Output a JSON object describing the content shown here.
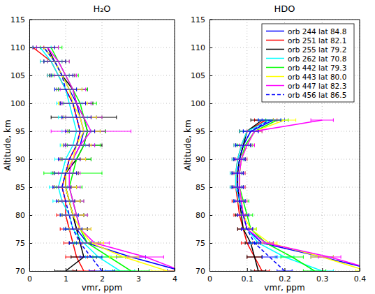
{
  "chart_data": [
    {
      "type": "line",
      "title": "H₂O",
      "x_label": "vmr, ppm",
      "y_label": "Altitude, km",
      "xlim": [
        0,
        4
      ],
      "xticks": [
        0,
        1,
        2,
        3,
        4
      ],
      "ylim": [
        70,
        115
      ],
      "yticks": [
        70,
        75,
        80,
        85,
        90,
        95,
        100,
        105,
        110,
        115
      ],
      "grid": true,
      "marker": "none",
      "y": [
        70,
        72.5,
        75,
        77.5,
        80,
        82.5,
        85,
        87.5,
        90,
        92.5,
        95,
        97.5,
        100,
        102.5,
        105,
        107.5,
        110
      ],
      "series": [
        {
          "color": "#0000ff",
          "line_style": "solid",
          "x": [
            4.2,
            2.8,
            1.6,
            1.3,
            1.2,
            1.1,
            1.0,
            1.0,
            1.2,
            1.4,
            1.5,
            1.4,
            1.3,
            1.1,
            0.9,
            0.7,
            0.4
          ],
          "x_errors": [
            0.4,
            0.4,
            0.3,
            0.3,
            0.3,
            0.3,
            0.3,
            0.3,
            0.35,
            0.4,
            0.45,
            0.45,
            0.4,
            0.35,
            0.3,
            0.3,
            0.3
          ]
        },
        {
          "color": "#ff0000",
          "line_style": "solid",
          "x": [
            1.5,
            1.3,
            1.2,
            1.1,
            1.0,
            1.0,
            0.9,
            1.0,
            1.1,
            1.3,
            1.4,
            1.3,
            1.2,
            1.0,
            0.8,
            0.6,
            0.1
          ],
          "x_errors": [
            0.3,
            0.3,
            0.25,
            0.25,
            0.25,
            0.25,
            0.25,
            0.3,
            0.3,
            0.35,
            0.4,
            0.4,
            0.35,
            0.3,
            0.3,
            0.3,
            0.3
          ]
        },
        {
          "color": "#000000",
          "line_style": "solid",
          "x": [
            1.0,
            1.5,
            1.4,
            1.3,
            1.2,
            1.1,
            1.0,
            1.0,
            1.3,
            1.5,
            1.6,
            1.5,
            1.3,
            1.2,
            0.9,
            0.7,
            0.5
          ],
          "x_errors": [
            0.3,
            0.35,
            0.3,
            0.3,
            0.3,
            0.3,
            0.3,
            0.35,
            0.4,
            0.5,
            0.5,
            0.9,
            0.45,
            0.4,
            0.35,
            0.3,
            0.3
          ]
        },
        {
          "color": "#00ffff",
          "line_style": "solid",
          "x": [
            2.5,
            1.9,
            1.5,
            1.2,
            1.1,
            0.9,
            0.8,
            0.9,
            1.0,
            1.2,
            1.3,
            1.2,
            1.1,
            1.0,
            0.8,
            0.6,
            0.3
          ],
          "x_errors": [
            0.4,
            0.35,
            0.3,
            0.25,
            0.25,
            0.25,
            0.25,
            0.3,
            0.3,
            0.35,
            0.4,
            0.4,
            0.35,
            0.3,
            0.3,
            0.3,
            0.3
          ]
        },
        {
          "color": "#00ff00",
          "line_style": "solid",
          "x": [
            2.8,
            2.2,
            1.6,
            1.4,
            1.3,
            1.2,
            1.1,
            1.2,
            1.3,
            1.5,
            1.6,
            1.5,
            1.4,
            1.2,
            1.0,
            0.8,
            0.6
          ],
          "x_errors": [
            0.5,
            0.45,
            0.35,
            0.3,
            0.3,
            0.3,
            0.35,
            0.8,
            0.4,
            0.45,
            0.5,
            0.5,
            0.45,
            0.4,
            0.35,
            0.3,
            0.3
          ]
        },
        {
          "color": "#ff00ff",
          "line_style": "solid",
          "x": [
            4.2,
            3.2,
            1.8,
            1.4,
            1.3,
            1.2,
            1.1,
            1.1,
            1.2,
            1.4,
            1.7,
            1.5,
            1.3,
            1.2,
            1.0,
            0.8,
            0.5
          ],
          "x_errors": [
            0.5,
            0.5,
            0.4,
            0.3,
            0.3,
            0.3,
            0.3,
            0.3,
            0.35,
            0.4,
            1.1,
            0.5,
            0.4,
            0.35,
            0.3,
            0.3,
            0.3
          ]
        },
        {
          "color": "#ffff00",
          "line_style": "solid",
          "x": [
            3.8,
            2.6,
            1.7,
            1.4,
            1.2,
            1.1,
            1.0,
            1.0,
            1.2,
            1.3,
            1.5,
            1.4,
            1.2,
            1.1,
            0.9,
            0.7,
            0.4
          ],
          "x_errors": [
            0.45,
            0.4,
            0.35,
            0.3,
            0.3,
            0.3,
            0.3,
            0.3,
            0.35,
            0.4,
            0.45,
            0.45,
            0.4,
            0.35,
            0.3,
            0.3,
            0.3
          ]
        },
        {
          "color": "#0000ff",
          "line_style": "dashed",
          "x": [
            2.0,
            1.7,
            1.4,
            1.2,
            1.1,
            1.0,
            0.9,
            1.0,
            1.1,
            1.3,
            1.4,
            1.3,
            1.2,
            1.0,
            0.9,
            0.7,
            0.4
          ],
          "x_errors": [
            0.35,
            0.3,
            0.3,
            0.25,
            0.25,
            0.25,
            0.25,
            0.3,
            0.3,
            0.35,
            0.4,
            0.4,
            0.35,
            0.3,
            0.3,
            0.3,
            0.3
          ]
        }
      ]
    },
    {
      "type": "line",
      "title": "HDO",
      "x_label": "vmr, ppm",
      "y_label": "Altitude, km",
      "xlim": [
        0,
        0.4
      ],
      "xticks": [
        0,
        0.1,
        0.2,
        0.3,
        0.4
      ],
      "ylim": [
        70,
        115
      ],
      "yticks": [
        70,
        75,
        80,
        85,
        90,
        95,
        100,
        105,
        110,
        115
      ],
      "grid": true,
      "marker": "none",
      "legend": "upper right",
      "y": [
        70,
        72.5,
        75,
        77.5,
        80,
        82.5,
        85,
        87.5,
        90,
        92.5,
        95,
        97
      ],
      "series": [
        {
          "name": "orb 244 lat 84.8",
          "color": "#0000ff",
          "line_style": "solid",
          "x": [
            0.45,
            0.3,
            0.14,
            0.1,
            0.09,
            0.08,
            0.075,
            0.075,
            0.08,
            0.09,
            0.11,
            0.17
          ],
          "x_errors": [
            0.03,
            0.03,
            0.02,
            0.015,
            0.015,
            0.015,
            0.015,
            0.015,
            0.015,
            0.02,
            0.02,
            0.03
          ]
        },
        {
          "name": "orb 251 lat 82.1",
          "color": "#ff0000",
          "line_style": "solid",
          "x": [
            0.14,
            0.12,
            0.1,
            0.09,
            0.08,
            0.075,
            0.07,
            0.07,
            0.075,
            0.085,
            0.1,
            0.15
          ],
          "x_errors": [
            0.02,
            0.02,
            0.015,
            0.015,
            0.015,
            0.015,
            0.015,
            0.015,
            0.015,
            0.02,
            0.02,
            0.03
          ]
        },
        {
          "name": "orb 255 lat 79.2",
          "color": "#000000",
          "line_style": "solid",
          "x": [
            0.13,
            0.12,
            0.11,
            0.09,
            0.085,
            0.08,
            0.075,
            0.075,
            0.08,
            0.09,
            0.1,
            0.14
          ],
          "x_errors": [
            0.02,
            0.02,
            0.015,
            0.015,
            0.015,
            0.015,
            0.015,
            0.015,
            0.015,
            0.02,
            0.02,
            0.03
          ]
        },
        {
          "name": "orb 262 lat 70.8",
          "color": "#00ffff",
          "line_style": "solid",
          "x": [
            0.3,
            0.2,
            0.13,
            0.1,
            0.09,
            0.08,
            0.07,
            0.07,
            0.075,
            0.085,
            0.1,
            0.16
          ],
          "x_errors": [
            0.03,
            0.025,
            0.02,
            0.015,
            0.015,
            0.015,
            0.015,
            0.015,
            0.015,
            0.02,
            0.02,
            0.03
          ]
        },
        {
          "name": "orb 442 lat 79.3",
          "color": "#00ff00",
          "line_style": "solid",
          "x": [
            0.28,
            0.22,
            0.15,
            0.11,
            0.1,
            0.09,
            0.08,
            0.08,
            0.085,
            0.095,
            0.12,
            0.18
          ],
          "x_errors": [
            0.03,
            0.03,
            0.02,
            0.015,
            0.015,
            0.015,
            0.015,
            0.015,
            0.015,
            0.02,
            0.02,
            0.03
          ]
        },
        {
          "name": "orb 443 lat 80.0",
          "color": "#ffff00",
          "line_style": "solid",
          "x": [
            0.42,
            0.3,
            0.16,
            0.11,
            0.09,
            0.085,
            0.08,
            0.08,
            0.085,
            0.1,
            0.12,
            0.2
          ],
          "x_errors": [
            0.03,
            0.03,
            0.02,
            0.015,
            0.015,
            0.015,
            0.015,
            0.015,
            0.015,
            0.02,
            0.02,
            0.03
          ]
        },
        {
          "name": "orb 447 lat 82.3",
          "color": "#ff00ff",
          "line_style": "solid",
          "x": [
            0.45,
            0.32,
            0.15,
            0.1,
            0.09,
            0.085,
            0.08,
            0.08,
            0.085,
            0.1,
            0.12,
            0.3
          ],
          "x_errors": [
            0.03,
            0.03,
            0.02,
            0.015,
            0.015,
            0.015,
            0.015,
            0.015,
            0.015,
            0.02,
            0.02,
            0.03
          ]
        },
        {
          "name": "orb 456 lat 86.5",
          "color": "#0000ff",
          "line_style": "dashed",
          "x": [
            0.2,
            0.16,
            0.12,
            0.1,
            0.09,
            0.08,
            0.075,
            0.075,
            0.08,
            0.09,
            0.11,
            0.16
          ],
          "x_errors": [
            0.02,
            0.02,
            0.015,
            0.015,
            0.015,
            0.015,
            0.015,
            0.015,
            0.015,
            0.02,
            0.02,
            0.03
          ]
        }
      ]
    }
  ]
}
